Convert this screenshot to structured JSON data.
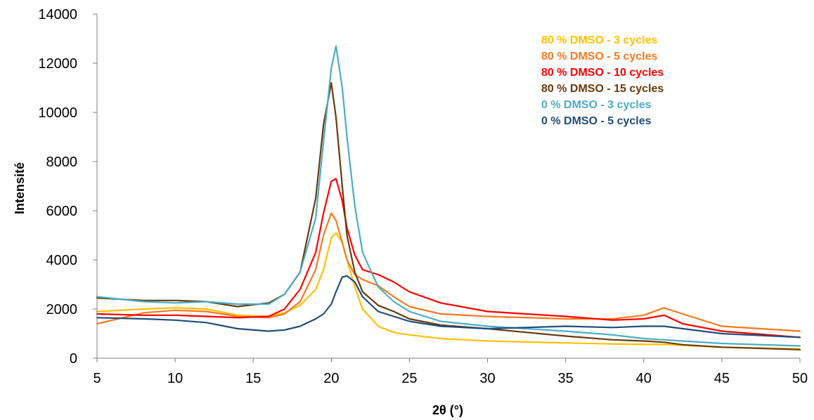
{
  "chart_data": {
    "type": "line",
    "xlabel": "2θ (°)",
    "ylabel": "Intensité",
    "xlim": [
      5,
      50
    ],
    "ylim": [
      0,
      14000
    ],
    "x_ticks": [
      "5",
      "10",
      "15",
      "20",
      "25",
      "30",
      "35",
      "40",
      "45",
      "50"
    ],
    "y_ticks": [
      "0",
      "2000",
      "4000",
      "6000",
      "8000",
      "10000",
      "12000",
      "14000"
    ],
    "grid": false,
    "legend_position": "top-right",
    "x": [
      5,
      8,
      10,
      12,
      14,
      16,
      17,
      18,
      19,
      19.5,
      20,
      20.3,
      20.7,
      21,
      21.5,
      22,
      23,
      24,
      25,
      27,
      30,
      35,
      38,
      40,
      41.3,
      42.5,
      45,
      50
    ],
    "series": [
      {
        "name": "80 % DMSO - 3 cycles",
        "color": "#FFC000",
        "values": [
          1900,
          2000,
          2050,
          2000,
          1750,
          1700,
          1850,
          2150,
          2800,
          3600,
          4900,
          5100,
          4700,
          4000,
          2900,
          2000,
          1300,
          1050,
          950,
          800,
          700,
          620,
          580,
          560,
          560,
          520,
          450,
          380
        ]
      },
      {
        "name": "80 % DMSO - 5 cycles",
        "color": "#F47A20",
        "values": [
          1400,
          1850,
          1950,
          1900,
          1700,
          1650,
          1800,
          2300,
          3600,
          5000,
          5900,
          5600,
          4700,
          4000,
          3400,
          3200,
          2950,
          2500,
          2100,
          1800,
          1700,
          1600,
          1600,
          1750,
          2050,
          1800,
          1300,
          1100
        ]
      },
      {
        "name": "80 % DMSO - 10 cycles",
        "color": "#FF0000",
        "values": [
          1800,
          1750,
          1750,
          1700,
          1650,
          1700,
          2000,
          2800,
          4300,
          5900,
          7200,
          7300,
          6400,
          5300,
          4200,
          3600,
          3400,
          3100,
          2700,
          2250,
          1900,
          1700,
          1550,
          1600,
          1750,
          1400,
          1100,
          850
        ]
      },
      {
        "name": "80 % DMSO - 15 cycles",
        "color": "#6A3A0C",
        "values": [
          2450,
          2350,
          2350,
          2300,
          2100,
          2250,
          2600,
          3500,
          6500,
          9500,
          11200,
          9800,
          7000,
          5000,
          3500,
          2700,
          2150,
          1900,
          1600,
          1350,
          1200,
          900,
          750,
          700,
          650,
          550,
          450,
          350
        ]
      },
      {
        "name": "0 % DMSO - 3 cycles",
        "color": "#4BACC6",
        "values": [
          2500,
          2300,
          2250,
          2300,
          2200,
          2200,
          2600,
          3500,
          5700,
          8800,
          11800,
          12700,
          11000,
          9000,
          6200,
          4300,
          2900,
          2300,
          1900,
          1500,
          1300,
          1100,
          950,
          800,
          750,
          700,
          600,
          500
        ]
      },
      {
        "name": "0 % DMSO - 5 cycles",
        "color": "#1F4E79",
        "values": [
          1650,
          1600,
          1550,
          1450,
          1200,
          1100,
          1150,
          1300,
          1600,
          1800,
          2200,
          2700,
          3300,
          3350,
          3100,
          2500,
          1900,
          1700,
          1500,
          1300,
          1200,
          1300,
          1250,
          1300,
          1300,
          1200,
          1000,
          850
        ]
      }
    ]
  }
}
